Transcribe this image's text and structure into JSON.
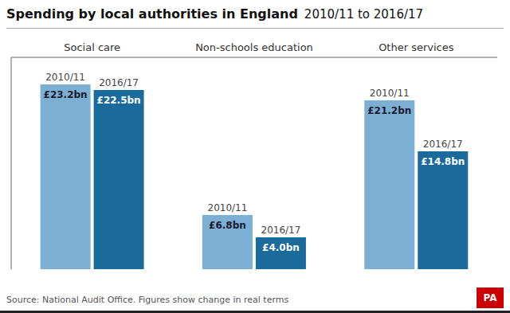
{
  "chart_data": {
    "type": "bar",
    "title": "Spending by local authorities in England",
    "subtitle": "2010/11 to 2016/17",
    "annotations": [
      "Source: National Audit Office. Figures show change in real terms",
      "PA"
    ],
    "categories": [
      "Social care",
      "Non-schools education",
      "Other services"
    ],
    "series": [
      {
        "name": "2010/11",
        "color": "#7BAFD4",
        "values": [
          23.2,
          6.8,
          21.2
        ],
        "value_labels": [
          "£23.2bn",
          "£6.8bn",
          "£21.2bn"
        ]
      },
      {
        "name": "2016/17",
        "color": "#1B6A9C",
        "values": [
          22.5,
          4.0,
          14.8
        ],
        "value_labels": [
          "£22.5bn",
          "£4.0bn",
          "£14.8bn"
        ]
      }
    ],
    "ylim": [
      0,
      26.6
    ],
    "data_labels": true,
    "tick_labels": "x",
    "grid": false
  }
}
